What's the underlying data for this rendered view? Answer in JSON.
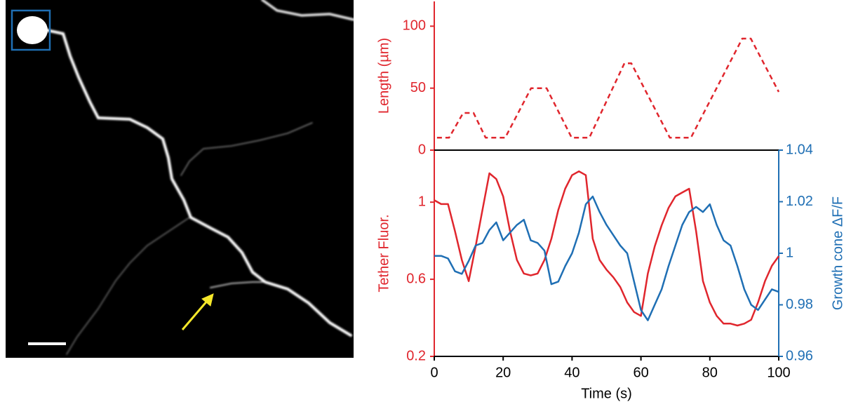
{
  "chart_data": [
    {
      "type": "line",
      "ylabel": "Length (µm)",
      "xlim": [
        0,
        100
      ],
      "ylim": [
        0,
        120
      ],
      "yticks": [
        0,
        50,
        100
      ],
      "x": [
        0.8,
        4.3,
        8.4,
        11.4,
        14.9,
        20.6,
        28.1,
        32.6,
        39.9,
        45,
        55.2,
        57.2,
        68.4,
        74.5,
        89.4,
        91.9,
        100
      ],
      "series": [
        {
          "color": "#e0262d",
          "line_style": "dashed",
          "values": [
            10,
            10,
            30,
            30,
            10,
            10,
            50,
            50,
            10,
            10,
            70,
            70,
            10,
            10,
            90,
            90,
            47
          ]
        }
      ]
    },
    {
      "type": "line",
      "xlabel": "Time (s)",
      "ylabel": "Tether Fluor.",
      "y2label": "Growth cone ΔF/F",
      "xlim": [
        0,
        100
      ],
      "xticks": [
        0,
        20,
        40,
        60,
        80,
        100
      ],
      "ylim": [
        0.2,
        1.27
      ],
      "yticks": [
        0.2,
        0.6,
        1
      ],
      "y2lim": [
        0.96,
        1.04
      ],
      "y2ticks": [
        0.96,
        0.98,
        1,
        1.02,
        1.04
      ],
      "x": [
        0,
        2,
        4,
        6,
        8,
        10,
        12,
        14,
        16,
        18,
        20,
        22,
        24,
        26,
        28,
        30,
        32,
        34,
        36,
        38,
        40,
        42,
        44,
        46,
        48,
        50,
        52,
        54,
        56,
        58,
        60,
        62,
        64,
        66,
        68,
        70,
        72,
        74,
        76,
        78,
        80,
        82,
        84,
        86,
        88,
        90,
        92,
        94,
        96,
        98,
        100
      ],
      "series": [
        {
          "color": "#e0262d",
          "values": [
            1.01,
            0.99,
            0.99,
            0.85,
            0.7,
            0.59,
            0.77,
            0.96,
            1.15,
            1.12,
            1.03,
            0.85,
            0.7,
            0.63,
            0.62,
            0.63,
            0.7,
            0.81,
            0.96,
            1.07,
            1.14,
            1.16,
            1.14,
            0.81,
            0.7,
            0.65,
            0.61,
            0.56,
            0.48,
            0.43,
            0.41,
            0.63,
            0.77,
            0.88,
            0.97,
            1.03,
            1.05,
            1.07,
            0.85,
            0.59,
            0.48,
            0.41,
            0.37,
            0.37,
            0.36,
            0.37,
            0.39,
            0.48,
            0.59,
            0.67,
            0.72
          ]
        },
        {
          "color": "#1f6fb4",
          "axis": "y2",
          "values": [
            0.999,
            0.999,
            0.998,
            0.993,
            0.992,
            0.997,
            1.003,
            1.004,
            1.009,
            1.012,
            1.005,
            1.008,
            1.011,
            1.013,
            1.005,
            1.004,
            1.001,
            0.988,
            0.989,
            0.995,
            1.0,
            1.008,
            1.019,
            1.022,
            1.016,
            1.011,
            1.007,
            1.003,
            1.0,
            0.989,
            0.978,
            0.974,
            0.98,
            0.986,
            0.995,
            1.003,
            1.011,
            1.016,
            1.018,
            1.016,
            1.019,
            1.011,
            1.005,
            1.003,
            0.995,
            0.986,
            0.98,
            0.978,
            0.982,
            0.986,
            0.985
          ]
        }
      ]
    }
  ]
}
